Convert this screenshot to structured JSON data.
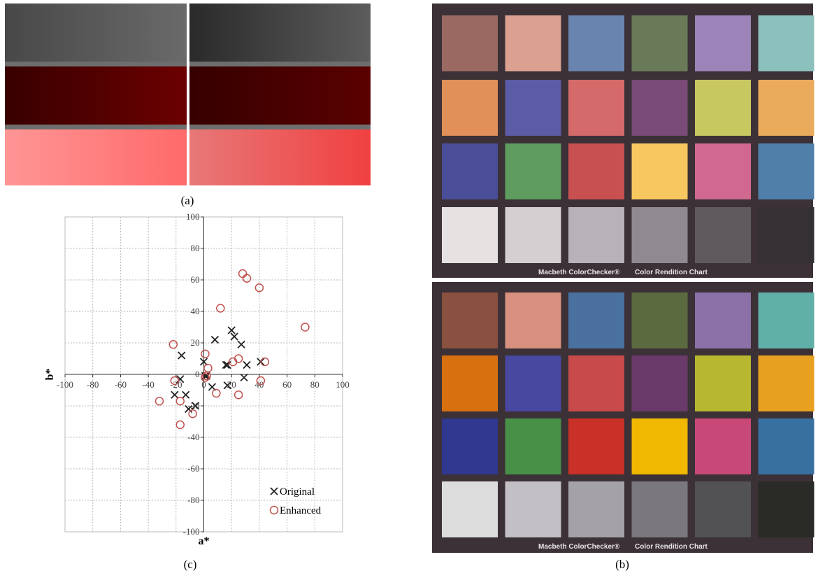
{
  "panel_a": {
    "label": "(a)"
  },
  "panel_b": {
    "label": "(b)",
    "checkers": [
      {
        "caption_left": "Macbeth ColorChecker®",
        "caption_right": "Color Rendition Chart",
        "swatches": [
          "#9a6a62",
          "#dba090",
          "#6a84b0",
          "#6a7a58",
          "#9c84b8",
          "#8cc0bc",
          "#e09058",
          "#5c5ca6",
          "#d46a6a",
          "#7a4a78",
          "#c8c860",
          "#eaac5c",
          "#4a4e98",
          "#5e9c60",
          "#c85050",
          "#f8c860",
          "#d06890",
          "#5080aa",
          "#e6e2e2",
          "#d4d0d2",
          "#b6b2b8",
          "#8e8a90",
          "#5e5a5e",
          "#343034"
        ]
      },
      {
        "caption_left": "Macbeth ColorChecker®",
        "caption_right": "Color Rendition Chart",
        "swatches": [
          "#8a5040",
          "#d89080",
          "#4a70a0",
          "#5c6a40",
          "#8c70a8",
          "#60b0a8",
          "#d87010",
          "#4848a0",
          "#c84a4a",
          "#6a3a6a",
          "#b8b830",
          "#e8a020",
          "#303890",
          "#489048",
          "#c83028",
          "#f0b800",
          "#c84878",
          "#3870a0",
          "#dcdcdc",
          "#c2c0c4",
          "#a4a2a8",
          "#7a787e",
          "#525254",
          "#2a2a26"
        ]
      }
    ]
  },
  "panel_c": {
    "label": "(c)"
  },
  "chart_data": {
    "type": "scatter",
    "xlabel": "a*",
    "ylabel": "b*",
    "xlim": [
      -100,
      100
    ],
    "ylim": [
      -100,
      100
    ],
    "xticks": [
      -100,
      -80,
      -60,
      -40,
      -20,
      0,
      20,
      40,
      60,
      80,
      100
    ],
    "yticks": [
      -100,
      -80,
      -60,
      -40,
      -20,
      0,
      20,
      40,
      60,
      80,
      100
    ],
    "grid": true,
    "legend": "lower right",
    "series": [
      {
        "name": "Original",
        "marker": "x",
        "color": "#222222",
        "x": [
          8,
          20,
          22,
          27,
          -16,
          0,
          17,
          16,
          31,
          41,
          29,
          17,
          6,
          -17,
          -21,
          -13,
          -11,
          -6,
          1,
          2
        ],
        "y": [
          22,
          28,
          24,
          19,
          12,
          8,
          6,
          6,
          6,
          8,
          -2,
          -7,
          -8,
          -3,
          -13,
          -13,
          -22,
          -20,
          -1,
          -1
        ]
      },
      {
        "name": "Enhanced",
        "marker": "o",
        "color": "#c0504d",
        "x": [
          28,
          31,
          40,
          73,
          12,
          -22,
          1,
          3,
          21,
          25,
          44,
          41,
          -21,
          9,
          25,
          -32,
          -17,
          -8,
          -17,
          2,
          1
        ],
        "y": [
          64,
          61,
          55,
          30,
          42,
          19,
          13,
          4,
          8,
          10,
          8,
          -4,
          -4,
          -12,
          -13,
          -17,
          -17,
          -25,
          -32,
          -1,
          -2
        ]
      }
    ]
  }
}
